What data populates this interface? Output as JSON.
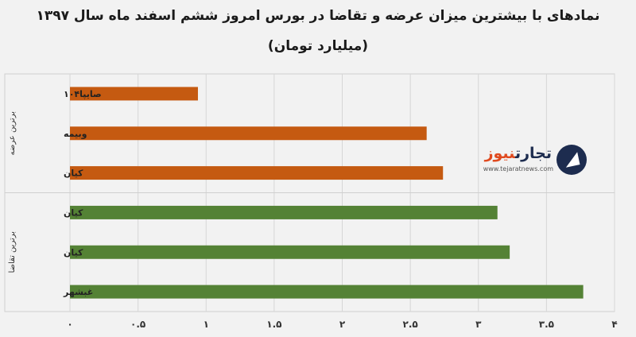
{
  "title_line1": "نمادهای با بیشترین میزان عرضه و تقاضا در بورس امروز ششم اسفند ماه سال ۱۳۹۷",
  "title_line2": "(میلیارد تومان)",
  "logo": {
    "name_main": "تجارت",
    "name_accent": "نیوز",
    "url": "www.tejaratnews.com"
  },
  "chart_data": {
    "type": "bar",
    "orientation": "horizontal",
    "xlim": [
      0,
      4
    ],
    "x_ticks": [
      0,
      0.5,
      1,
      1.5,
      2,
      2.5,
      3,
      3.5,
      4
    ],
    "x_tick_labels": [
      "۰",
      "۰.۵",
      "۱",
      "۱.۵",
      "۲",
      "۲.۵",
      "۳",
      "۳.۵",
      "۴"
    ],
    "grid": true,
    "groups": [
      {
        "name": "برترین عرضه",
        "color": "#c55a11",
        "bars": [
          {
            "label": "صایپا۱۰۴",
            "value": 0.94
          },
          {
            "label": "وبیمه",
            "value": 2.62
          },
          {
            "label": "کیان",
            "value": 2.74
          }
        ]
      },
      {
        "name": "برترین تقاضا",
        "color": "#548235",
        "bars": [
          {
            "label": "کیان",
            "value": 3.14
          },
          {
            "label": "کیان",
            "value": 3.23
          },
          {
            "label": "غبشهر",
            "value": 3.77
          }
        ]
      }
    ]
  }
}
